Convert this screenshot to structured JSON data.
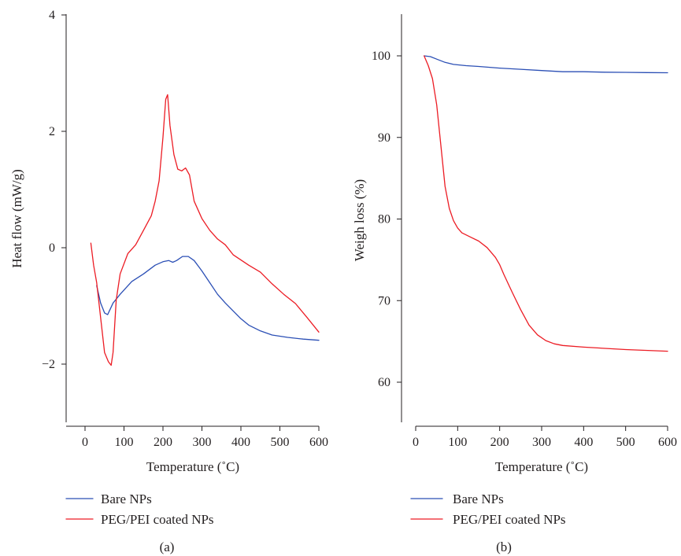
{
  "chart_data": [
    {
      "type": "line",
      "panel_label": "(a)",
      "xlabel": "Temperature (˚C)",
      "ylabel": "Heat flow (mW/g)",
      "xlim": [
        -50,
        600
      ],
      "ylim": [
        -3,
        4
      ],
      "xticks": [
        "0",
        "100",
        "200",
        "300",
        "400",
        "500",
        "600"
      ],
      "xtick_values": [
        0,
        100,
        200,
        300,
        400,
        500,
        600
      ],
      "yticks": [
        "−2",
        "0",
        "2",
        "4"
      ],
      "ytick_values": [
        -2,
        0,
        2,
        4
      ],
      "grid": false,
      "legend_position": "bottom-left",
      "series": [
        {
          "name": "Bare NPs",
          "color": "#2b4fb5",
          "points": [
            [
              30,
              -0.65
            ],
            [
              40,
              -0.95
            ],
            [
              50,
              -1.12
            ],
            [
              58,
              -1.15
            ],
            [
              65,
              -1.05
            ],
            [
              72,
              -0.95
            ],
            [
              90,
              -0.8
            ],
            [
              120,
              -0.58
            ],
            [
              150,
              -0.45
            ],
            [
              180,
              -0.3
            ],
            [
              200,
              -0.24
            ],
            [
              215,
              -0.22
            ],
            [
              225,
              -0.25
            ],
            [
              235,
              -0.22
            ],
            [
              250,
              -0.15
            ],
            [
              265,
              -0.15
            ],
            [
              280,
              -0.22
            ],
            [
              300,
              -0.4
            ],
            [
              320,
              -0.6
            ],
            [
              340,
              -0.8
            ],
            [
              360,
              -0.95
            ],
            [
              400,
              -1.22
            ],
            [
              420,
              -1.33
            ],
            [
              450,
              -1.43
            ],
            [
              480,
              -1.5
            ],
            [
              520,
              -1.54
            ],
            [
              560,
              -1.57
            ],
            [
              600,
              -1.59
            ]
          ]
        },
        {
          "name": "PEG/PEI coated NPs",
          "color": "#ec1c24",
          "points": [
            [
              15,
              0.08
            ],
            [
              22,
              -0.3
            ],
            [
              30,
              -0.6
            ],
            [
              40,
              -1.2
            ],
            [
              50,
              -1.8
            ],
            [
              60,
              -1.96
            ],
            [
              67,
              -2.02
            ],
            [
              72,
              -1.8
            ],
            [
              80,
              -0.9
            ],
            [
              90,
              -0.45
            ],
            [
              110,
              -0.1
            ],
            [
              130,
              0.05
            ],
            [
              150,
              0.3
            ],
            [
              170,
              0.55
            ],
            [
              180,
              0.8
            ],
            [
              190,
              1.15
            ],
            [
              200,
              1.9
            ],
            [
              207,
              2.55
            ],
            [
              212,
              2.63
            ],
            [
              218,
              2.1
            ],
            [
              228,
              1.6
            ],
            [
              238,
              1.35
            ],
            [
              248,
              1.32
            ],
            [
              258,
              1.37
            ],
            [
              268,
              1.25
            ],
            [
              280,
              0.8
            ],
            [
              300,
              0.5
            ],
            [
              320,
              0.3
            ],
            [
              340,
              0.15
            ],
            [
              360,
              0.05
            ],
            [
              380,
              -0.12
            ],
            [
              420,
              -0.3
            ],
            [
              450,
              -0.42
            ],
            [
              480,
              -0.62
            ],
            [
              510,
              -0.8
            ],
            [
              540,
              -0.96
            ],
            [
              570,
              -1.2
            ],
            [
              600,
              -1.45
            ]
          ]
        }
      ]
    },
    {
      "type": "line",
      "panel_label": "(b)",
      "xlabel": "Temperature (˚C)",
      "ylabel": "Weigh loss (%)",
      "xlim": [
        0,
        600
      ],
      "ylim": [
        55,
        105
      ],
      "xticks": [
        "0",
        "100",
        "200",
        "300",
        "400",
        "500",
        "600"
      ],
      "xtick_values": [
        0,
        100,
        200,
        300,
        400,
        500,
        600
      ],
      "yticks": [
        "60",
        "70",
        "80",
        "90",
        "100"
      ],
      "ytick_values": [
        60,
        70,
        80,
        90,
        100
      ],
      "grid": false,
      "legend_position": "bottom-left",
      "series": [
        {
          "name": "Bare NPs",
          "color": "#2b4fb5",
          "points": [
            [
              20,
              100.0
            ],
            [
              35,
              99.9
            ],
            [
              50,
              99.6
            ],
            [
              70,
              99.2
            ],
            [
              90,
              98.95
            ],
            [
              120,
              98.8
            ],
            [
              150,
              98.7
            ],
            [
              200,
              98.5
            ],
            [
              250,
              98.35
            ],
            [
              300,
              98.2
            ],
            [
              350,
              98.05
            ],
            [
              400,
              98.05
            ],
            [
              450,
              98.0
            ],
            [
              500,
              97.98
            ],
            [
              550,
              97.95
            ],
            [
              600,
              97.93
            ]
          ]
        },
        {
          "name": "PEG/PEI coated NPs",
          "color": "#ec1c24",
          "points": [
            [
              20,
              100.0
            ],
            [
              30,
              98.8
            ],
            [
              40,
              97.2
            ],
            [
              50,
              94.0
            ],
            [
              60,
              89.0
            ],
            [
              70,
              84.0
            ],
            [
              80,
              81.3
            ],
            [
              90,
              79.8
            ],
            [
              100,
              78.9
            ],
            [
              110,
              78.3
            ],
            [
              130,
              77.8
            ],
            [
              150,
              77.3
            ],
            [
              170,
              76.5
            ],
            [
              190,
              75.3
            ],
            [
              200,
              74.4
            ],
            [
              210,
              73.2
            ],
            [
              230,
              71.0
            ],
            [
              250,
              68.9
            ],
            [
              270,
              67.0
            ],
            [
              290,
              65.8
            ],
            [
              310,
              65.1
            ],
            [
              330,
              64.7
            ],
            [
              350,
              64.5
            ],
            [
              400,
              64.3
            ],
            [
              500,
              64.0
            ],
            [
              600,
              63.8
            ]
          ]
        }
      ]
    }
  ]
}
